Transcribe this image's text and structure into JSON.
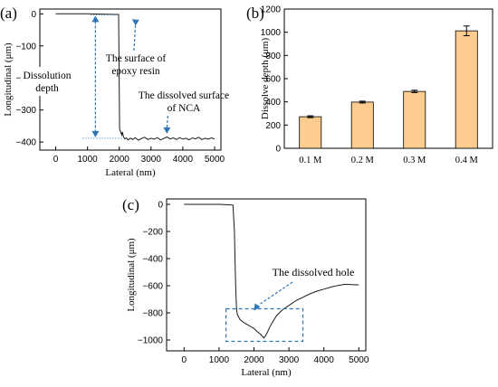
{
  "colors": {
    "axis": "#000000",
    "trace": "#1a1a1a",
    "annotation": "#2e75b6",
    "bar_fill": "#fdcd90",
    "bar_stroke": "#000000"
  },
  "chart_data": [
    {
      "panel": "(a)",
      "type": "line",
      "xlabel": "Lateral (nm)",
      "ylabel": "Longitudinal (μm)",
      "xlim": [
        -500,
        5200
      ],
      "ylim": [
        -425,
        15
      ],
      "xticks": [
        0,
        1000,
        2000,
        3000,
        4000,
        5000
      ],
      "yticks": [
        0,
        -100,
        -200,
        -300,
        -400
      ],
      "grid": false,
      "series": [
        {
          "x": [
            0,
            1000,
            1980,
            2010,
            2060,
            2080,
            2100,
            2130,
            2170,
            2220,
            2280,
            2350,
            2420,
            2500,
            2600,
            2700,
            2800,
            2900,
            3000,
            3100,
            3200,
            3300,
            3400,
            3500,
            3600,
            3700,
            3800,
            3900,
            4000,
            4100,
            4200,
            4300,
            4400,
            4500,
            4600,
            4700,
            4800,
            4900,
            5000
          ],
          "y": [
            0,
            0,
            -2,
            -360,
            -372,
            -378,
            -368,
            -383,
            -390,
            -387,
            -393,
            -388,
            -392,
            -386,
            -394,
            -389,
            -385,
            -392,
            -388,
            -391,
            -386,
            -393,
            -389,
            -384,
            -390,
            -387,
            -392,
            -386,
            -391,
            -388,
            -393,
            -387,
            -390,
            -385,
            -392,
            -388,
            -391,
            -387,
            -390
          ]
        }
      ],
      "annotations": [
        {
          "text": "The surface of",
          "text2": "epoxy resin"
        },
        {
          "text": "Dissolution",
          "text2": "depth"
        },
        {
          "text": "The dissolved surface",
          "text2": "of NCA"
        }
      ]
    },
    {
      "panel": "(b)",
      "type": "bar",
      "ylabel": "Dissolve depth (μm)",
      "categories": [
        "0.1 M",
        "0.2 M",
        "0.3 M",
        "0.4 M"
      ],
      "values": [
        272,
        398,
        490,
        1012
      ],
      "errors": [
        8,
        8,
        10,
        42
      ],
      "ylim": [
        0,
        1200
      ],
      "yticks": [
        0,
        200,
        400,
        600,
        800,
        1000,
        1200
      ],
      "grid": false
    },
    {
      "panel": "(c)",
      "type": "line",
      "xlabel": "Lateral (nm)",
      "ylabel": "Longitudinal (μm)",
      "xlim": [
        -500,
        5200
      ],
      "ylim": [
        -1080,
        40
      ],
      "xticks": [
        0,
        1000,
        2000,
        3000,
        4000,
        5000
      ],
      "yticks": [
        0,
        -200,
        -400,
        -600,
        -800,
        -1000
      ],
      "grid": false,
      "series": [
        {
          "x": [
            0,
            1000,
            1400,
            1440,
            1460,
            1480,
            1500,
            1520,
            1560,
            1600,
            1700,
            1800,
            1900,
            2000,
            2100,
            2200,
            2280,
            2330,
            2380,
            2450,
            2550,
            2650,
            2800,
            3000,
            3200,
            3400,
            3600,
            3800,
            4000,
            4200,
            4400,
            4600,
            4800,
            5000
          ],
          "y": [
            0,
            0,
            -5,
            -200,
            -420,
            -630,
            -760,
            -810,
            -830,
            -850,
            -870,
            -885,
            -900,
            -915,
            -940,
            -960,
            -985,
            -970,
            -945,
            -905,
            -860,
            -820,
            -780,
            -745,
            -710,
            -685,
            -660,
            -640,
            -625,
            -610,
            -598,
            -590,
            -592,
            -594
          ]
        }
      ],
      "annotations": [
        {
          "text": "The dissolved hole"
        }
      ]
    }
  ]
}
